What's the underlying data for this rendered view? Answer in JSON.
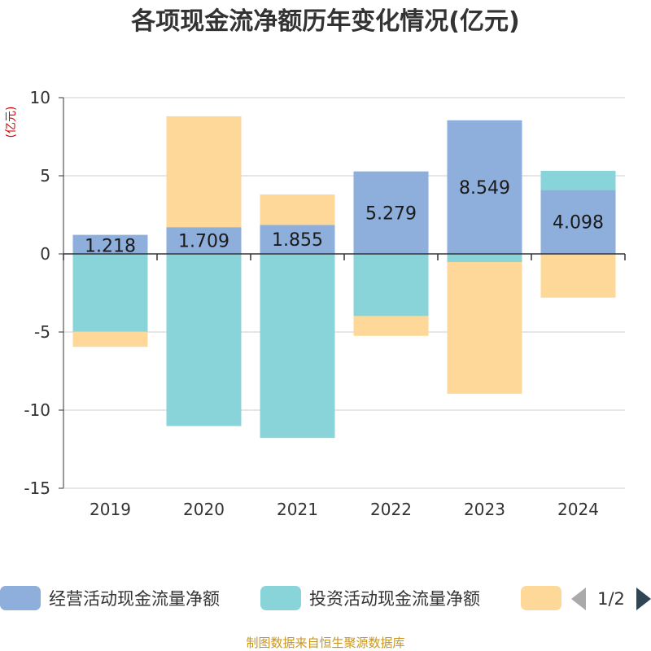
{
  "chart_data": {
    "type": "bar",
    "stacked": true,
    "title": "各项现金流净额历年变化情况(亿元)",
    "ylabel": "(亿元)",
    "xlabel": "",
    "ylim": [
      -15,
      10
    ],
    "yticks": [
      10,
      5,
      0,
      -5,
      -10,
      -15
    ],
    "grid": true,
    "categories": [
      "2019",
      "2020",
      "2021",
      "2022",
      "2023",
      "2024"
    ],
    "series": [
      {
        "name": "经营活动现金流量净额",
        "color": "#8eaedb",
        "values": [
          1.218,
          1.709,
          1.855,
          5.279,
          8.549,
          4.098
        ],
        "labels_shown": true
      },
      {
        "name": "投资活动现金流量净额",
        "color": "#88d4d8",
        "values": [
          -4.98,
          -11.02,
          -11.78,
          -3.98,
          -0.52,
          1.22
        ],
        "labels_shown": false
      },
      {
        "name": "",
        "color": "#fdd899",
        "values": [
          -0.97,
          7.1,
          1.95,
          -1.27,
          -8.43,
          -2.8
        ],
        "labels_shown": false
      }
    ],
    "legend_position": "bottom",
    "legend_page": "1/2",
    "source": "制图数据来自恒生聚源数据库",
    "colors": {
      "axis_label_unit": "#cc0000",
      "source": "#c8961e",
      "grid": "#cccccc",
      "axis": "#333333",
      "pager_active": "#2f4554",
      "pager_inactive": "#aaaaaa"
    }
  }
}
